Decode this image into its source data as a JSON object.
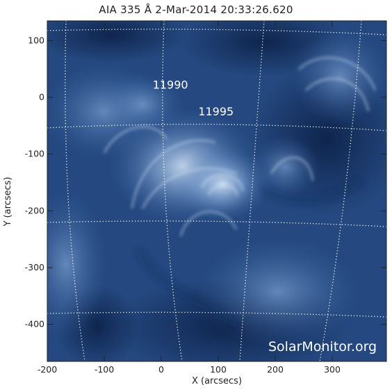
{
  "title": "AIA 335 Å  2-Mar-2014 20:33:26.620",
  "xlabel": "X (arcsecs)",
  "ylabel": "Y (arcsecs)",
  "x_ticks": [
    "-200",
    "-100",
    "0",
    "100",
    "200",
    "300"
  ],
  "y_ticks": [
    "100",
    "0",
    "-100",
    "-200",
    "-300",
    "-400"
  ],
  "regions": [
    {
      "label": "11990",
      "x": -15,
      "y": 15
    },
    {
      "label": "11995",
      "x": 65,
      "y": -32
    }
  ],
  "watermark": "SolarMonitor.org",
  "colors": {
    "background": "#ffffff",
    "sun_dark": "#0f2a56",
    "sun_bright": "#cfe0f5",
    "grid": "#ffffff"
  }
}
